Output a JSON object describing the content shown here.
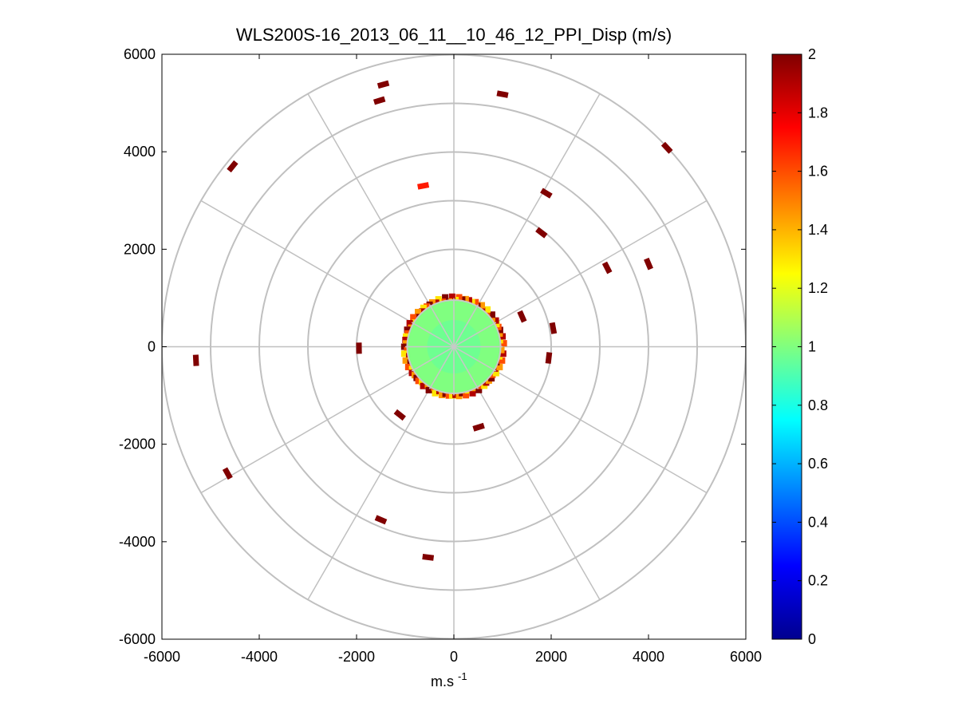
{
  "chart_data": {
    "type": "heatmap",
    "subtype": "polar-ppi",
    "title": "WLS200S-16_2013_06_11__10_46_12_PPI_Disp (m/s)",
    "xlabel_base": "m.s",
    "xlabel_exp": "-1",
    "ylabel": "",
    "xlim": [
      -6000,
      6000
    ],
    "ylim": [
      -6000,
      6000
    ],
    "x_ticks": [
      -6000,
      -4000,
      -2000,
      0,
      2000,
      4000,
      6000
    ],
    "y_ticks": [
      6000,
      4000,
      2000,
      0,
      -2000,
      -4000,
      -6000
    ],
    "x_tick_labels": [
      "-6000",
      "-4000",
      "-2000",
      "0",
      "2000",
      "4000",
      "6000"
    ],
    "y_tick_labels": [
      "6000",
      "4000",
      "2000",
      "0",
      "-2000",
      "-4000",
      "-6000"
    ],
    "polar_grid": {
      "range_rings": [
        1000,
        2000,
        3000,
        4000,
        5000,
        6000
      ],
      "spoke_angles_deg": [
        0,
        30,
        60,
        90,
        120,
        150,
        180,
        210,
        240,
        270,
        300,
        330
      ]
    },
    "colorbar": {
      "min": 0,
      "max": 2,
      "ticks": [
        2,
        1.8,
        1.6,
        1.4,
        1.2,
        1,
        0.8,
        0.6,
        0.4,
        0.2,
        0
      ],
      "tick_labels": [
        "2",
        "1.8",
        "1.6",
        "1.4",
        "1.2",
        "1",
        "0.8",
        "0.6",
        "0.4",
        "0.2",
        "0"
      ],
      "colormap": "jet"
    },
    "central_blob": {
      "radius": 1000,
      "value": 1.0
    },
    "scatter_points": [
      {
        "x": -1450,
        "y": 5380,
        "value": 2.0
      },
      {
        "x": -1530,
        "y": 5050,
        "value": 2.0
      },
      {
        "x": 1000,
        "y": 5180,
        "value": 2.0
      },
      {
        "x": 4380,
        "y": 4080,
        "value": 2.0
      },
      {
        "x": -4550,
        "y": 3700,
        "value": 2.0
      },
      {
        "x": -630,
        "y": 3300,
        "value": 1.7
      },
      {
        "x": 1900,
        "y": 3150,
        "value": 2.0
      },
      {
        "x": 1800,
        "y": 2340,
        "value": 2.0
      },
      {
        "x": 3150,
        "y": 1620,
        "value": 2.0
      },
      {
        "x": 4000,
        "y": 1700,
        "value": 2.0
      },
      {
        "x": -5300,
        "y": -280,
        "value": 2.0
      },
      {
        "x": -4650,
        "y": -2600,
        "value": 2.0
      },
      {
        "x": -1500,
        "y": -3550,
        "value": 2.0
      },
      {
        "x": -530,
        "y": -4320,
        "value": 2.0
      },
      {
        "x": 2040,
        "y": 380,
        "value": 2.0
      },
      {
        "x": 1950,
        "y": -230,
        "value": 2.0
      },
      {
        "x": -1950,
        "y": -30,
        "value": 2.0
      },
      {
        "x": 1400,
        "y": 620,
        "value": 2.0
      },
      {
        "x": 510,
        "y": -1650,
        "value": 2.0
      },
      {
        "x": -1110,
        "y": -1400,
        "value": 2.0
      }
    ]
  }
}
